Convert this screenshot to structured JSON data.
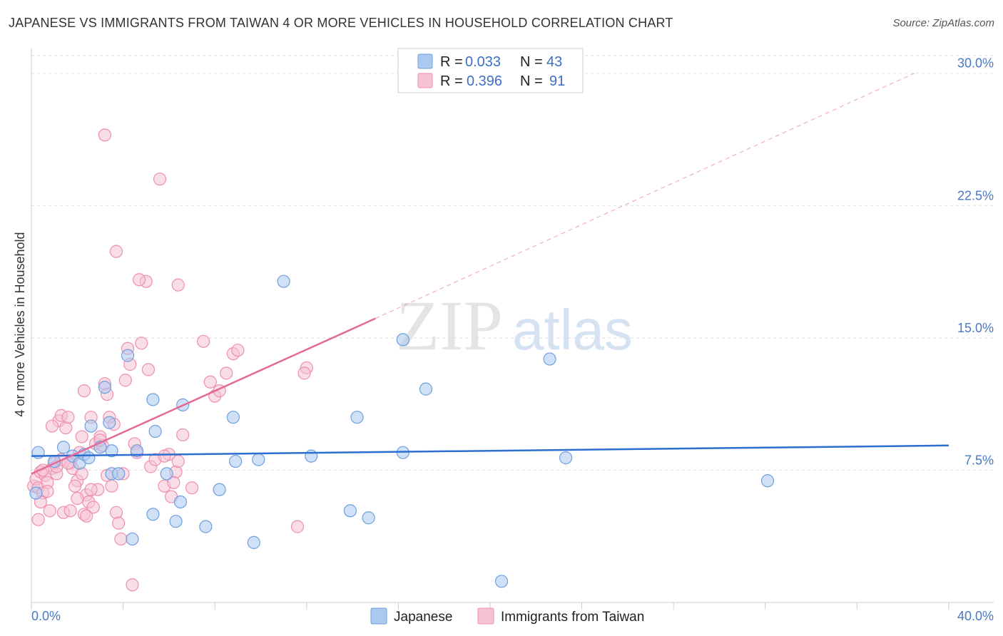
{
  "title": "JAPANESE VS IMMIGRANTS FROM TAIWAN 4 OR MORE VEHICLES IN HOUSEHOLD CORRELATION CHART",
  "source": "Source: ZipAtlas.com",
  "watermark": {
    "zip": "ZIP",
    "atlas": "atlas"
  },
  "colors": {
    "japanese_fill": "#aac8f0",
    "japanese_stroke": "#6f9fdd",
    "japanese_line": "#2d6fd0",
    "taiwan_fill": "#f6c3d3",
    "taiwan_stroke": "#ee8fae",
    "taiwan_line": "#e46a95",
    "axis_label": "#4a78c2",
    "grid": "#dddddd"
  },
  "legend": {
    "rows": [
      {
        "r_label": "R = ",
        "r_value": "0.033",
        "n_label": "N = ",
        "n_value": "43"
      },
      {
        "r_label": "R = ",
        "r_value": "0.396",
        "n_label": "N = ",
        "n_value": "91"
      }
    ]
  },
  "chart_data": {
    "type": "scatter",
    "title": "JAPANESE VS IMMIGRANTS FROM TAIWAN 4 OR MORE VEHICLES IN HOUSEHOLD CORRELATION CHART",
    "xlabel": "",
    "ylabel": "4 or more Vehicles in Household",
    "xlim": [
      0,
      40
    ],
    "ylim": [
      0,
      31
    ],
    "x_tick_labels": [
      "0.0%",
      "40.0%"
    ],
    "y_ticks": [
      7.5,
      15.0,
      22.5,
      30.0
    ],
    "y_tick_labels": [
      "7.5%",
      "15.0%",
      "22.5%",
      "30.0%"
    ],
    "grid": true,
    "legend_position": "top-center",
    "series": [
      {
        "name": "Japanese",
        "R": 0.033,
        "N": 43,
        "trend": {
          "x0": 0,
          "y0": 8.3,
          "x1": 40,
          "y1": 8.9
        },
        "points": [
          [
            0.3,
            8.5
          ],
          [
            1.0,
            8.0
          ],
          [
            1.4,
            8.8
          ],
          [
            1.8,
            8.3
          ],
          [
            2.1,
            7.9
          ],
          [
            2.3,
            8.4
          ],
          [
            2.6,
            10.0
          ],
          [
            3.0,
            8.8
          ],
          [
            3.2,
            12.2
          ],
          [
            3.4,
            10.2
          ],
          [
            3.5,
            8.6
          ],
          [
            3.5,
            7.3
          ],
          [
            3.8,
            7.3
          ],
          [
            4.2,
            14.0
          ],
          [
            5.3,
            11.5
          ],
          [
            5.4,
            9.7
          ],
          [
            5.9,
            7.3
          ],
          [
            4.6,
            8.6
          ],
          [
            4.4,
            3.6
          ],
          [
            5.3,
            5.0
          ],
          [
            6.6,
            11.2
          ],
          [
            6.5,
            5.7
          ],
          [
            8.8,
            10.5
          ],
          [
            8.2,
            6.4
          ],
          [
            8.9,
            8.0
          ],
          [
            9.9,
            8.1
          ],
          [
            11.0,
            18.2
          ],
          [
            12.2,
            8.3
          ],
          [
            14.2,
            10.5
          ],
          [
            13.9,
            5.2
          ],
          [
            14.7,
            4.8
          ],
          [
            16.2,
            14.9
          ],
          [
            16.2,
            8.5
          ],
          [
            17.2,
            12.1
          ],
          [
            22.6,
            13.8
          ],
          [
            23.3,
            8.2
          ],
          [
            32.1,
            6.9
          ],
          [
            6.3,
            4.6
          ],
          [
            7.6,
            4.3
          ],
          [
            9.7,
            3.4
          ],
          [
            20.5,
            1.2
          ],
          [
            0.2,
            6.2
          ],
          [
            2.5,
            8.2
          ]
        ]
      },
      {
        "name": "Immigrants from Taiwan",
        "R": 0.396,
        "N": 91,
        "trend": {
          "x0": 0,
          "y0": 7.3,
          "x1": 15,
          "y1": 16.1,
          "dash_to": {
            "x": 38.5,
            "y": 30.0
          }
        },
        "points": [
          [
            0.1,
            6.6
          ],
          [
            0.2,
            7.0
          ],
          [
            0.3,
            6.5
          ],
          [
            0.3,
            4.7
          ],
          [
            0.4,
            7.4
          ],
          [
            0.5,
            6.2
          ],
          [
            0.6,
            7.2
          ],
          [
            0.7,
            6.8
          ],
          [
            0.8,
            5.2
          ],
          [
            0.9,
            7.6
          ],
          [
            1.0,
            7.9
          ],
          [
            1.1,
            7.3
          ],
          [
            1.2,
            10.3
          ],
          [
            1.3,
            10.6
          ],
          [
            1.5,
            9.9
          ],
          [
            1.6,
            10.5
          ],
          [
            1.7,
            7.9
          ],
          [
            1.8,
            7.6
          ],
          [
            2.0,
            6.9
          ],
          [
            2.1,
            8.5
          ],
          [
            2.2,
            9.4
          ],
          [
            2.3,
            12.0
          ],
          [
            2.4,
            6.1
          ],
          [
            2.5,
            5.7
          ],
          [
            2.6,
            10.5
          ],
          [
            2.8,
            9.0
          ],
          [
            3.0,
            9.4
          ],
          [
            3.1,
            8.9
          ],
          [
            3.2,
            12.4
          ],
          [
            3.3,
            11.8
          ],
          [
            3.4,
            10.5
          ],
          [
            3.6,
            10.1
          ],
          [
            3.7,
            5.1
          ],
          [
            3.8,
            4.5
          ],
          [
            3.9,
            3.6
          ],
          [
            4.0,
            7.3
          ],
          [
            4.1,
            12.6
          ],
          [
            4.2,
            14.4
          ],
          [
            4.3,
            13.5
          ],
          [
            4.5,
            9.0
          ],
          [
            4.6,
            8.5
          ],
          [
            4.8,
            14.7
          ],
          [
            5.0,
            18.2
          ],
          [
            5.2,
            7.7
          ],
          [
            5.4,
            8.1
          ],
          [
            5.6,
            24.0
          ],
          [
            5.8,
            6.6
          ],
          [
            6.0,
            8.4
          ],
          [
            6.1,
            6.0
          ],
          [
            6.3,
            7.4
          ],
          [
            6.4,
            18.0
          ],
          [
            6.6,
            9.5
          ],
          [
            7.0,
            6.5
          ],
          [
            7.5,
            14.8
          ],
          [
            7.8,
            12.5
          ],
          [
            8.0,
            11.7
          ],
          [
            8.2,
            12.0
          ],
          [
            8.5,
            13.0
          ],
          [
            8.8,
            14.1
          ],
          [
            9.0,
            14.3
          ],
          [
            3.2,
            26.5
          ],
          [
            3.7,
            19.9
          ],
          [
            2.3,
            5.0
          ],
          [
            2.7,
            5.4
          ],
          [
            1.4,
            5.1
          ],
          [
            1.9,
            6.6
          ],
          [
            2.2,
            7.3
          ],
          [
            2.9,
            6.4
          ],
          [
            3.3,
            7.2
          ],
          [
            1.7,
            5.2
          ],
          [
            12.0,
            13.3
          ],
          [
            11.9,
            13.0
          ],
          [
            11.6,
            4.3
          ],
          [
            5.8,
            8.3
          ],
          [
            6.4,
            8.0
          ],
          [
            4.7,
            18.3
          ],
          [
            3.0,
            9.2
          ],
          [
            2.4,
            4.9
          ],
          [
            3.5,
            6.6
          ],
          [
            2.6,
            6.4
          ],
          [
            0.7,
            6.3
          ],
          [
            1.1,
            7.7
          ],
          [
            5.1,
            13.2
          ],
          [
            0.5,
            7.5
          ],
          [
            1.3,
            8.1
          ],
          [
            0.9,
            10.0
          ],
          [
            6.2,
            6.8
          ],
          [
            4.4,
            1.0
          ],
          [
            2.0,
            5.9
          ],
          [
            1.6,
            7.9
          ],
          [
            0.4,
            5.7
          ]
        ]
      }
    ]
  },
  "bottom_legend": [
    "Japanese",
    "Immigrants from Taiwan"
  ]
}
